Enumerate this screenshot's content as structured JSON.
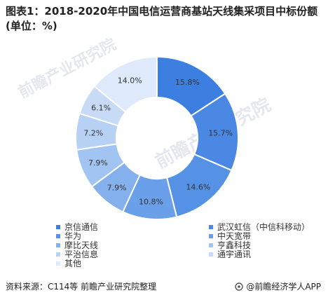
{
  "title": "图表1：2018-2020年中国电信运营商基站天线集采项目中标份额(单位：%)",
  "source": "资料来源：C114等 前瞻产业研究院整理",
  "brand": "@前瞻经济学人APP",
  "watermark": "前瞻产业研究院",
  "chart_data": {
    "type": "pie",
    "style": "donut",
    "title": "图表1：2018-2020年中国电信运营商基站天线集采项目中标份额(单位：%)",
    "unit": "%",
    "legend_position": "bottom",
    "slices": [
      {
        "name": "京信通信",
        "value": 15.8,
        "label": "15.8%",
        "color": "#3d7fe0"
      },
      {
        "name": "武汉虹信（中信科移动）",
        "value": 15.7,
        "label": "15.7%",
        "color": "#4a88e4"
      },
      {
        "name": "华为",
        "value": 14.6,
        "label": "14.6%",
        "color": "#5592e6"
      },
      {
        "name": "中天宽带",
        "value": 10.8,
        "label": "10.8%",
        "color": "#6aa0ea"
      },
      {
        "name": "摩比天线",
        "value": 7.9,
        "label": "7.9%",
        "color": "#84b1ee"
      },
      {
        "name": "亨鑫科技",
        "value": 7.9,
        "label": "7.9%",
        "color": "#a2c4f2"
      },
      {
        "name": "平治信息",
        "value": 7.2,
        "label": "7.2%",
        "color": "#b7d1f5"
      },
      {
        "name": "通宇通讯",
        "value": 6.1,
        "label": "6.1%",
        "color": "#c7dbf7"
      },
      {
        "name": "其他",
        "value": 14.0,
        "label": "14.0%",
        "color": "#deeafb"
      }
    ]
  }
}
